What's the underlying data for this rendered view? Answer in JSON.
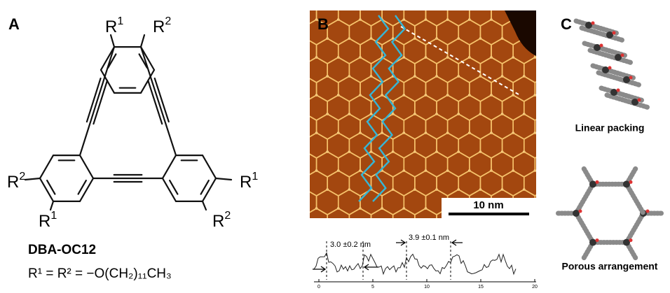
{
  "panels": {
    "a": {
      "label": "A",
      "substituents": [
        {
          "base": "R",
          "sup": "1"
        },
        {
          "base": "R",
          "sup": "2"
        },
        {
          "base": "R",
          "sup": "2"
        },
        {
          "base": "R",
          "sup": "1"
        },
        {
          "base": "R",
          "sup": "1"
        },
        {
          "base": "R",
          "sup": "2"
        }
      ],
      "compound": "DBA-OC12",
      "formula": "R¹ = R² = −O(CH₂)₁₁CH₃"
    },
    "b": {
      "label": "B",
      "scale_bar": "10 nm",
      "profile": {
        "annotations": [
          "3.0 ±0.2 nm",
          "3.9 ±0.1 nm"
        ],
        "x_ticks": [
          "0",
          "5",
          "10",
          "15",
          "20"
        ]
      }
    },
    "c": {
      "label": "C",
      "captions": [
        "Linear packing",
        "Porous arrangement"
      ]
    }
  }
}
